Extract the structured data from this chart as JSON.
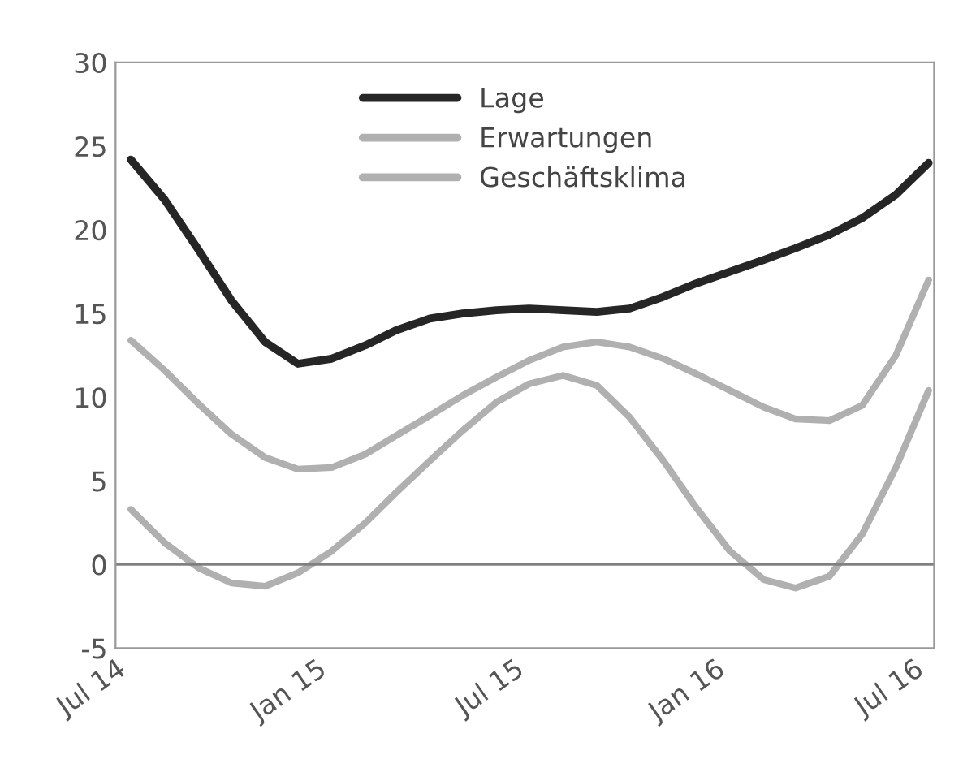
{
  "chart_data": {
    "type": "line",
    "x": [
      "2014-07-15",
      "2014-08-15",
      "2014-09-15",
      "2014-10-15",
      "2014-11-15",
      "2014-12-15",
      "2015-01-15",
      "2015-02-15",
      "2015-03-15",
      "2015-04-15",
      "2015-05-15",
      "2015-06-15",
      "2015-07-15",
      "2015-08-15",
      "2015-09-15",
      "2015-10-15",
      "2015-11-15",
      "2015-12-15",
      "2016-01-15",
      "2016-02-15",
      "2016-03-15",
      "2016-04-15",
      "2016-05-15",
      "2016-06-15",
      "2016-07-15"
    ],
    "series": [
      {
        "name": "Lage",
        "color": "#262626",
        "values": [
          24.2,
          21.8,
          18.8,
          15.8,
          13.3,
          12.0,
          12.3,
          13.1,
          14.0,
          14.7,
          15.0,
          15.2,
          15.3,
          15.2,
          15.1,
          15.3,
          16.0,
          16.8,
          17.5,
          18.2,
          18.9,
          19.7,
          20.7,
          22.1,
          24.0
        ]
      },
      {
        "name": "Erwartungen",
        "color": "#b0b0b0",
        "values": [
          3.3,
          1.3,
          -0.2,
          -1.1,
          -1.3,
          -0.5,
          0.8,
          2.5,
          4.3,
          6.2,
          8.0,
          9.7,
          10.8,
          11.3,
          10.7,
          8.8,
          6.2,
          3.4,
          0.8,
          -0.9,
          -1.4,
          -0.7,
          1.8,
          5.8,
          10.4
        ]
      },
      {
        "name": "Geschäftsklima",
        "color": "#b0b0b0",
        "values": [
          13.4,
          11.6,
          9.6,
          7.8,
          6.4,
          5.7,
          5.8,
          6.6,
          7.7,
          8.9,
          10.1,
          11.2,
          12.2,
          13.0,
          13.3,
          13.0,
          12.3,
          11.4,
          10.4,
          9.4,
          8.7,
          8.6,
          9.5,
          12.5,
          17.0
        ]
      }
    ],
    "xlim": [
      "2014-07-01",
      "2016-07-20"
    ],
    "xticks": [
      {
        "value": "2014-07-01",
        "label": "Jul 14"
      },
      {
        "value": "2015-01-01",
        "label": "Jan 15"
      },
      {
        "value": "2015-07-01",
        "label": "Jul 15"
      },
      {
        "value": "2016-01-01",
        "label": "Jan 16"
      },
      {
        "value": "2016-07-01",
        "label": "Jul 16"
      }
    ],
    "ylim": [
      -5,
      30
    ],
    "yticks": [
      -5,
      0,
      5,
      10,
      15,
      20,
      25,
      30
    ],
    "ref_lines": [
      {
        "axis": "y",
        "value": 0,
        "color": "#808080"
      }
    ],
    "grid": false,
    "legend": "top",
    "marker": "none",
    "line_style": "solid"
  }
}
